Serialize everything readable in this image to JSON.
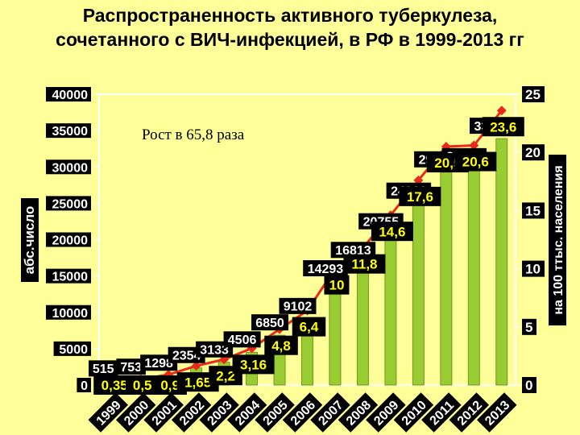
{
  "title_lines": [
    "Распространенность активного туберкулеза,",
    "сочетанного с ВИЧ-инфекцией, в РФ  в 1999-2013 гг"
  ],
  "annotation": "Рост  в 65,8 раза",
  "colors": {
    "background": "#FFFF99",
    "bar_fill": "#99CC33",
    "line": "#E8291C",
    "label_box": "#000000",
    "label_text_white": "#FFFFFF",
    "label_text_yellow": "#FFFF00"
  },
  "chart_data": {
    "type": "bar",
    "categories": [
      "1999",
      "2000",
      "2001",
      "2002",
      "2003",
      "2004",
      "2005",
      "2006",
      "2007",
      "2008",
      "2009",
      "2010",
      "2011",
      "2012",
      "2013"
    ],
    "bar_values": [
      515,
      753,
      1298,
      2354,
      3133,
      4506,
      6850,
      9102,
      14293,
      16813,
      20755,
      24963,
      29277,
      29708,
      33894
    ],
    "bar_labels": [
      "515",
      "753",
      "1298",
      "2354",
      "3133",
      "4506",
      "6850",
      "9102",
      "14293",
      "16813",
      "20755",
      "24963",
      "29277",
      "29708",
      "33894"
    ],
    "rate_values": [
      0.35,
      0.5,
      0.9,
      1.65,
      2.2,
      3.16,
      4.8,
      6.4,
      10,
      11.8,
      14.6,
      17.6,
      20.5,
      20.6,
      23.6
    ],
    "rate_labels": [
      "0,35",
      "0,5",
      "0,9",
      "1,65",
      "2,2",
      "3,16",
      "4,8",
      "6,4",
      "10",
      "11,8",
      "14,6",
      "17,6",
      "20,5",
      "20,6",
      "23,6"
    ],
    "ylabel_left": "абс.число",
    "ylabel_right": "на 100 ттыс. населения",
    "ylim_left": [
      0,
      40000
    ],
    "ylim_right": [
      0,
      25
    ],
    "yticks_left": [
      "0",
      "5000",
      "10000",
      "15000",
      "20000",
      "25000",
      "30000",
      "35000",
      "40000"
    ],
    "yticks_right": [
      "0",
      "5",
      "10",
      "15",
      "20",
      "25"
    ],
    "grid": false
  }
}
